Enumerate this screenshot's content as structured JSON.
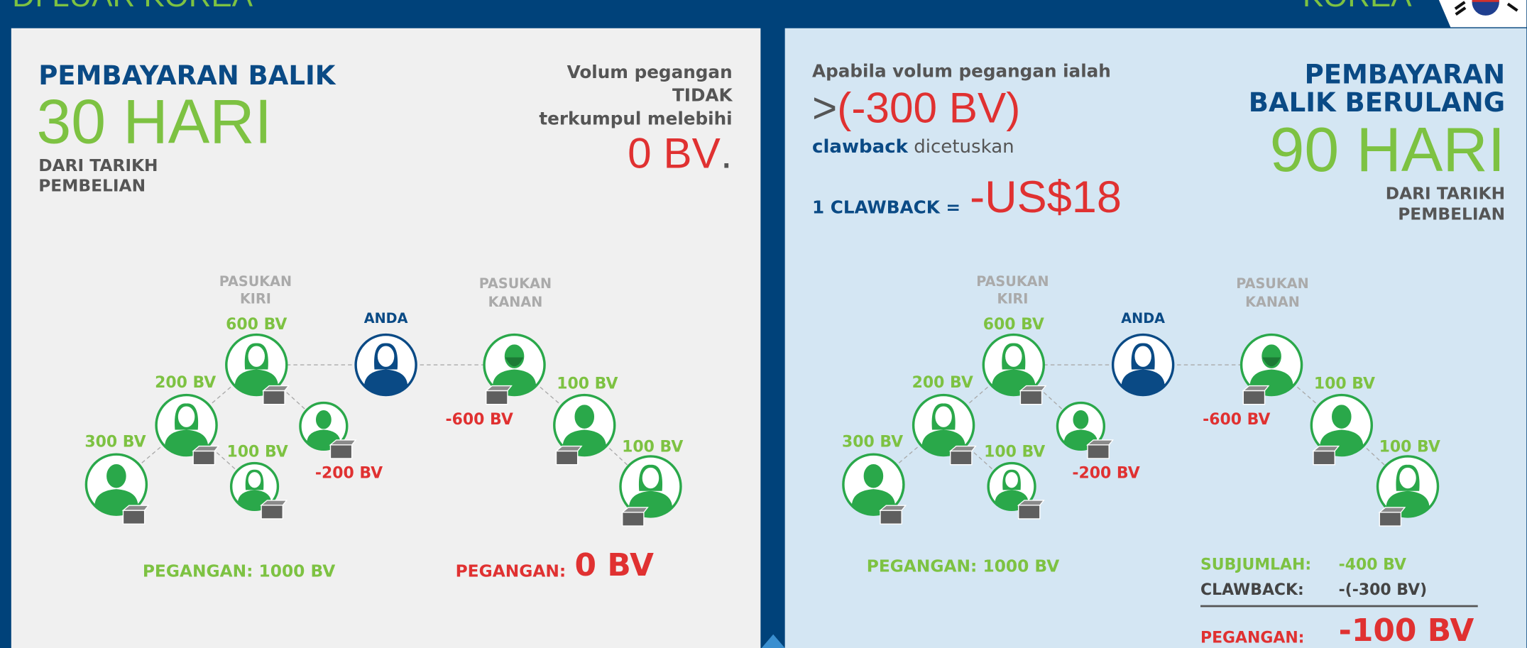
{
  "header": {
    "left_title": "DI LUAR KOREA",
    "right_title": "KOREA"
  },
  "panels": [
    {
      "heading": "PEMBAYARAN BALIK",
      "period": "30 HARI",
      "period_note": [
        "DARI TARIKH",
        "PEMBELIAN"
      ],
      "condition": [
        "Volum pegangan",
        "TIDAK",
        "terkumpul melebihi"
      ],
      "threshold": "0 BV",
      "threshold_end": ".",
      "tree": {
        "you": "ANDA",
        "left_team": [
          "PASUKAN",
          "KIRI"
        ],
        "right_team": [
          "PASUKAN",
          "KANAN"
        ],
        "nodes": [
          "600 BV",
          "200 BV",
          "300 BV",
          "100 BV",
          "-200 BV",
          "-600 BV",
          "100 BV",
          "100 BV"
        ]
      },
      "left_total": "PEGANGAN:  1000 BV",
      "right_total_label": "PEGANGAN:",
      "right_total_value": "0 BV"
    },
    {
      "condition": "Apabila volum pegangan ialah",
      "operator": ">",
      "threshold": "(-300 BV)",
      "trigger": [
        "clawback",
        "dicetuskan"
      ],
      "clawback_label": "1 CLAWBACK =",
      "clawback_value": "-US$18",
      "heading": [
        "PEMBAYARAN",
        "BALIK BERULANG"
      ],
      "period": "90 HARI",
      "period_note": [
        "DARI TARIKH",
        "PEMBELIAN"
      ],
      "tree": {
        "you": "ANDA",
        "left_team": [
          "PASUKAN",
          "KIRI"
        ],
        "right_team": [
          "PASUKAN",
          "KANAN"
        ],
        "nodes": [
          "600 BV",
          "200 BV",
          "300 BV",
          "100 BV",
          "-200 BV",
          "-600 BV",
          "100 BV",
          "100 BV"
        ]
      },
      "left_total": "PEGANGAN: 1000 BV",
      "summary": [
        [
          "SUBJUMLAH:",
          "-400 BV"
        ],
        [
          "CLAWBACK:",
          "-(-300 BV)"
        ],
        [
          "PEGANGAN:",
          "-100 BV"
        ]
      ]
    }
  ]
}
